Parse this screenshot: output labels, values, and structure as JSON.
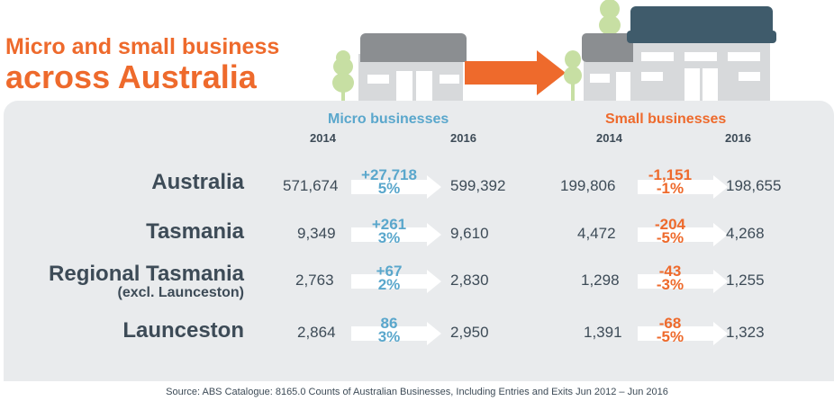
{
  "title": {
    "line1": "Micro and small business",
    "line2": "across Australia"
  },
  "columns": {
    "micro": {
      "label": "Micro businesses",
      "year_from": "2014",
      "year_to": "2016"
    },
    "small": {
      "label": "Small businesses",
      "year_from": "2014",
      "year_to": "2016"
    }
  },
  "rows": [
    {
      "region": "Australia",
      "sub": "",
      "micro": {
        "from": "571,674",
        "change": "+27,718",
        "pct": "5%",
        "to": "599,392"
      },
      "small": {
        "from": "199,806",
        "change": "-1,151",
        "pct": "-1%",
        "to": "198,655"
      }
    },
    {
      "region": "Tasmania",
      "sub": "",
      "micro": {
        "from": "9,349",
        "change": "+261",
        "pct": "3%",
        "to": "9,610"
      },
      "small": {
        "from": "4,472",
        "change": "-204",
        "pct": "-5%",
        "to": "4,268"
      }
    },
    {
      "region": "Regional Tasmania",
      "sub": "(excl. Launceston)",
      "micro": {
        "from": "2,763",
        "change": "+67",
        "pct": "2%",
        "to": "2,830"
      },
      "small": {
        "from": "1,298",
        "change": "-43",
        "pct": "-3%",
        "to": "1,255"
      }
    },
    {
      "region": "Launceston",
      "sub": "",
      "micro": {
        "from": "2,864",
        "change": "86",
        "pct": "3%",
        "to": "2,950"
      },
      "small": {
        "from": "1,391",
        "change": "-68",
        "pct": "-5%",
        "to": "1,323"
      }
    }
  ],
  "source": "Source: ABS Catalogue: 8165.0 Counts of Australian Businesses, Including Entries and Exits Jun 2012 – Jun 2016",
  "colors": {
    "orange": "#ee6a2c",
    "blue": "#5aa7cc",
    "text": "#3d4b57",
    "panel": "#e9ebed",
    "tree": "#c7dfa3",
    "building_grey": "#8b8e91",
    "building_dark": "#3f5b6b",
    "wall": "#d7d9db"
  },
  "icons": [
    "tree-icon",
    "small-shop-icon",
    "growth-arrow-icon",
    "large-shop-icon"
  ]
}
